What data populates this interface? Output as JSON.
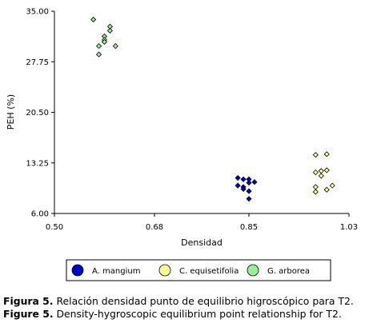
{
  "chart_data": {
    "type": "scatter",
    "xlabel": "Densidad",
    "ylabel": "PEH (%)",
    "xlim": [
      0.5,
      1.03
    ],
    "ylim": [
      6.0,
      35.0
    ],
    "x_ticks": [
      "0.50",
      "0.68",
      "0.85",
      "1.03"
    ],
    "y_ticks": [
      "6.00",
      "13.25",
      "20.50",
      "27.75",
      "35.00"
    ],
    "grid": false,
    "legend_position": "bottom",
    "series": [
      {
        "name": "A. mangium",
        "color": "#0000cc",
        "points": [
          [
            0.83,
            11.1
          ],
          [
            0.84,
            10.9
          ],
          [
            0.85,
            10.9
          ],
          [
            0.85,
            10.4
          ],
          [
            0.86,
            10.5
          ],
          [
            0.83,
            10.0
          ],
          [
            0.84,
            9.8
          ],
          [
            0.84,
            9.5
          ],
          [
            0.85,
            9.2
          ],
          [
            0.85,
            8.1
          ]
        ]
      },
      {
        "name": "C. equisetifolia",
        "color": "#ffff99",
        "points": [
          [
            0.97,
            14.4
          ],
          [
            0.99,
            14.5
          ],
          [
            0.97,
            11.9
          ],
          [
            0.98,
            12.1
          ],
          [
            0.99,
            12.2
          ],
          [
            0.98,
            11.4
          ],
          [
            1.0,
            10.0
          ],
          [
            0.97,
            9.8
          ],
          [
            0.97,
            9.1
          ],
          [
            0.99,
            9.4
          ]
        ]
      },
      {
        "name": "G. arborea",
        "color": "#99ee99",
        "points": [
          [
            0.57,
            33.8
          ],
          [
            0.6,
            32.8
          ],
          [
            0.6,
            32.2
          ],
          [
            0.59,
            31.4
          ],
          [
            0.59,
            30.9
          ],
          [
            0.59,
            30.6
          ],
          [
            0.58,
            30.0
          ],
          [
            0.61,
            30.0
          ],
          [
            0.58,
            28.8
          ]
        ]
      }
    ]
  },
  "caption": {
    "es_label": "Figura 5.",
    "es_text": " Relación densidad punto de equilibrio higroscópico para T2.",
    "en_label": "Figure 5.",
    "en_text": " Density-hygroscopic equilibrium point relationship for T2."
  }
}
